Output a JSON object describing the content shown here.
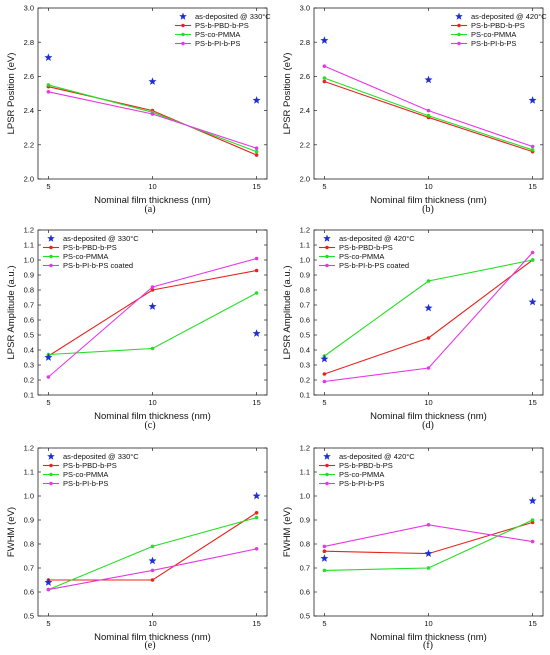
{
  "chart_data": [
    {
      "type": "line",
      "panel_label": "(a)",
      "xlabel": "Nominal film thickness (nm)",
      "ylabel": "LPSR Position (eV)",
      "x": [
        5,
        10,
        15
      ],
      "xlim": [
        4.5,
        15.5
      ],
      "ylim": [
        2.0,
        3.0
      ],
      "yticks": [
        "2.0",
        "2.2",
        "2.4",
        "2.6",
        "2.8",
        "3.0"
      ],
      "xticks": [
        "5",
        "10",
        "15"
      ],
      "scatter": {
        "name": "as-deposited @ 330°C",
        "color": "#1f2fd6",
        "values": [
          2.71,
          2.57,
          2.46
        ]
      },
      "series": [
        {
          "name": "PS-b-PBD-b-PS",
          "color": "#e8231c",
          "values": [
            2.54,
            2.4,
            2.14
          ]
        },
        {
          "name": "PS-co-PMMA",
          "color": "#22e022",
          "values": [
            2.55,
            2.39,
            2.16
          ]
        },
        {
          "name": "PS-b-PI-b-PS",
          "color": "#e637e6",
          "values": [
            2.51,
            2.38,
            2.18
          ]
        }
      ],
      "legend_position": "top-right"
    },
    {
      "type": "line",
      "panel_label": "(b)",
      "xlabel": "Nominal film thickness (nm)",
      "ylabel": "LPSR Position (eV)",
      "x": [
        5,
        10,
        15
      ],
      "xlim": [
        4.5,
        15.5
      ],
      "ylim": [
        2.0,
        3.0
      ],
      "yticks": [
        "2.0",
        "2.2",
        "2.4",
        "2.6",
        "2.8",
        "3.0"
      ],
      "xticks": [
        "5",
        "10",
        "15"
      ],
      "scatter": {
        "name": "as-deposited @ 420°C",
        "color": "#1f2fd6",
        "values": [
          2.81,
          2.58,
          2.46
        ]
      },
      "series": [
        {
          "name": "PS-b-PBD-b-PS",
          "color": "#e8231c",
          "values": [
            2.57,
            2.36,
            2.16
          ]
        },
        {
          "name": "PS-co-PMMA",
          "color": "#22e022",
          "values": [
            2.59,
            2.37,
            2.17
          ]
        },
        {
          "name": "PS-b-PI-b-PS",
          "color": "#e637e6",
          "values": [
            2.66,
            2.4,
            2.19
          ]
        }
      ],
      "legend_position": "top-right"
    },
    {
      "type": "line",
      "panel_label": "(c)",
      "xlabel": "Nominal film thickness (nm)",
      "ylabel": "LPSR Amplitude (a.u.)",
      "x": [
        5,
        10,
        15
      ],
      "xlim": [
        4.5,
        15.5
      ],
      "ylim": [
        0.1,
        1.2
      ],
      "yticks": [
        "0.1",
        "0.2",
        "0.3",
        "0.4",
        "0.5",
        "0.6",
        "0.7",
        "0.8",
        "0.9",
        "1.0",
        "1.1",
        "1.2"
      ],
      "xticks": [
        "5",
        "10",
        "15"
      ],
      "scatter": {
        "name": "as-deposited @ 330°C",
        "color": "#1f2fd6",
        "values": [
          0.35,
          0.69,
          0.51
        ]
      },
      "series": [
        {
          "name": "PS-b-PBD-b-PS",
          "color": "#e8231c",
          "values": [
            0.36,
            0.8,
            0.93
          ]
        },
        {
          "name": "PS-co-PMMA",
          "color": "#22e022",
          "values": [
            0.37,
            0.41,
            0.78
          ]
        },
        {
          "name": "PS-b-PI-b-PS coated",
          "color": "#e637e6",
          "values": [
            0.22,
            0.82,
            1.01
          ]
        }
      ],
      "legend_position": "top-left"
    },
    {
      "type": "line",
      "panel_label": "(d)",
      "xlabel": "Nominal film thickness (nm)",
      "ylabel": "LPSR Amplitude (a.u.)",
      "x": [
        5,
        10,
        15
      ],
      "xlim": [
        4.5,
        15.5
      ],
      "ylim": [
        0.1,
        1.2
      ],
      "yticks": [
        "0.1",
        "0.2",
        "0.3",
        "0.4",
        "0.5",
        "0.6",
        "0.7",
        "0.8",
        "0.9",
        "1.0",
        "1.1",
        "1.2"
      ],
      "xticks": [
        "5",
        "10",
        "15"
      ],
      "scatter": {
        "name": "as-deposited @ 420°C",
        "color": "#1f2fd6",
        "values": [
          0.34,
          0.68,
          0.72
        ]
      },
      "series": [
        {
          "name": "PS-b-PBD-b-PS",
          "color": "#e8231c",
          "values": [
            0.24,
            0.48,
            1.0
          ]
        },
        {
          "name": "PS-co-PMMA",
          "color": "#22e022",
          "values": [
            0.36,
            0.86,
            1.0
          ]
        },
        {
          "name": "PS-b-PI-b-PS coated",
          "color": "#e637e6",
          "values": [
            0.19,
            0.28,
            1.05
          ]
        }
      ],
      "legend_position": "top-left"
    },
    {
      "type": "line",
      "panel_label": "(e)",
      "xlabel": "Nominal film thickness (nm)",
      "ylabel": "FWHM (eV)",
      "x": [
        5,
        10,
        15
      ],
      "xlim": [
        4.5,
        15.5
      ],
      "ylim": [
        0.5,
        1.2
      ],
      "yticks": [
        "0.5",
        "0.6",
        "0.7",
        "0.8",
        "0.9",
        "1.0",
        "1.1",
        "1.2"
      ],
      "xticks": [
        "5",
        "10",
        "15"
      ],
      "scatter": {
        "name": "as-deposited @ 330°C",
        "color": "#1f2fd6",
        "values": [
          0.64,
          0.73,
          1.0
        ]
      },
      "series": [
        {
          "name": "PS-b-PBD-b-PS",
          "color": "#e8231c",
          "values": [
            0.65,
            0.65,
            0.93
          ]
        },
        {
          "name": "PS-co-PMMA",
          "color": "#22e022",
          "values": [
            0.61,
            0.79,
            0.91
          ]
        },
        {
          "name": "PS-b-PI-b-PS",
          "color": "#e637e6",
          "values": [
            0.61,
            0.69,
            0.78
          ]
        }
      ],
      "legend_position": "top-left"
    },
    {
      "type": "line",
      "panel_label": "(f)",
      "xlabel": "Nominal film thickness (nm)",
      "ylabel": "FWHM (eV)",
      "x": [
        5,
        10,
        15
      ],
      "xlim": [
        4.5,
        15.5
      ],
      "ylim": [
        0.5,
        1.2
      ],
      "yticks": [
        "0.5",
        "0.6",
        "0.7",
        "0.8",
        "0.9",
        "1.0",
        "1.1",
        "1.2"
      ],
      "xticks": [
        "5",
        "10",
        "15"
      ],
      "scatter": {
        "name": "as-deposited @ 420°C",
        "color": "#1f2fd6",
        "values": [
          0.74,
          0.76,
          0.98
        ]
      },
      "series": [
        {
          "name": "PS-b-PBD-b-PS",
          "color": "#e8231c",
          "values": [
            0.77,
            0.76,
            0.89
          ]
        },
        {
          "name": "PS-co-PMMA",
          "color": "#22e022",
          "values": [
            0.69,
            0.7,
            0.9
          ]
        },
        {
          "name": "PS-b-PI-b-PS",
          "color": "#e637e6",
          "values": [
            0.79,
            0.88,
            0.81
          ]
        }
      ],
      "legend_position": "top-left"
    }
  ]
}
